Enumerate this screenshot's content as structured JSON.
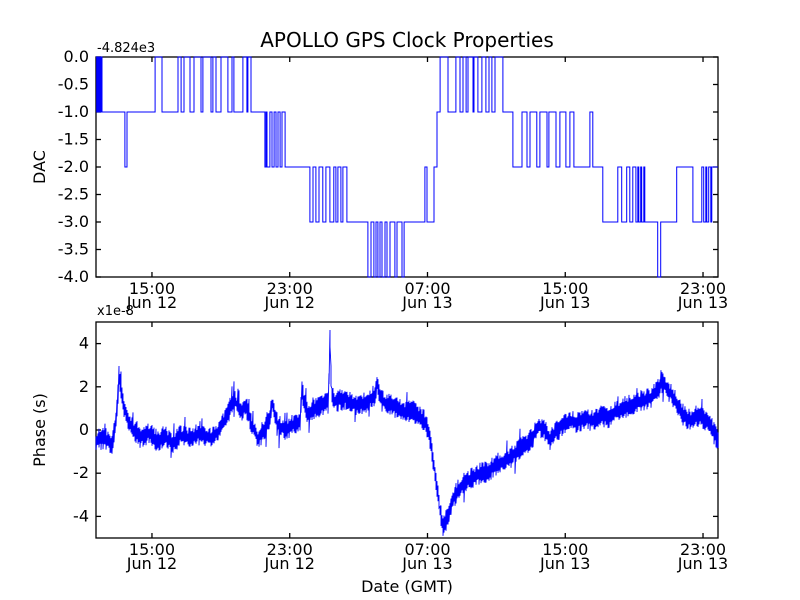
{
  "figure": {
    "background": "#ffffff",
    "frame_color": "#000000",
    "line_color": "#0000ff"
  },
  "chart_data": [
    {
      "type": "line",
      "drawstyle": "steps-post",
      "title": "APOLLO GPS Clock Properties",
      "ylabel": "DAC",
      "offset_text": "-4.824e3",
      "x_unit": "hours since Jun 12 00:00 GMT",
      "xlim": [
        11.75,
        47.87
      ],
      "ylim": [
        -4,
        0
      ],
      "grid": false,
      "xticks": [
        15,
        23,
        31,
        39,
        47
      ],
      "xtick_labels": [
        [
          "15:00",
          "Jun 12"
        ],
        [
          "23:00",
          "Jun 12"
        ],
        [
          "07:00",
          "Jun 13"
        ],
        [
          "15:00",
          "Jun 13"
        ],
        [
          "23:00",
          "Jun 13"
        ]
      ],
      "yticks": [
        0,
        -0.5,
        -1,
        -1.5,
        -2,
        -2.5,
        -3,
        -3.5,
        -4
      ],
      "ytick_labels": [
        "0.0",
        "-0.5",
        "-1.0",
        "-1.5",
        "-2.0",
        "-2.5",
        "-3.0",
        "-3.5",
        "-4.0"
      ],
      "series": [
        {
          "name": "dac-steps",
          "color": "#0000ff",
          "points": [
            [
              11.75,
              0
            ],
            [
              11.79,
              -1
            ],
            [
              11.82,
              0
            ],
            [
              11.85,
              -1
            ],
            [
              11.88,
              0
            ],
            [
              11.91,
              -1
            ],
            [
              11.94,
              0
            ],
            [
              11.97,
              -1
            ],
            [
              12.0,
              0
            ],
            [
              12.03,
              -1
            ],
            [
              12.06,
              0
            ],
            [
              12.1,
              -1
            ],
            [
              13.43,
              -2
            ],
            [
              13.55,
              -1
            ],
            [
              15.18,
              0
            ],
            [
              15.58,
              -1
            ],
            [
              16.51,
              0
            ],
            [
              16.69,
              -1
            ],
            [
              16.86,
              0
            ],
            [
              17.21,
              -1
            ],
            [
              17.44,
              0
            ],
            [
              17.85,
              -1
            ],
            [
              17.96,
              0
            ],
            [
              18.43,
              -1
            ],
            [
              18.54,
              0
            ],
            [
              18.72,
              -1
            ],
            [
              19.01,
              0
            ],
            [
              19.41,
              -1
            ],
            [
              19.65,
              0
            ],
            [
              19.76,
              -1
            ],
            [
              20.28,
              0
            ],
            [
              20.51,
              -1
            ],
            [
              20.57,
              0
            ],
            [
              20.75,
              -1
            ],
            [
              21.56,
              -2
            ],
            [
              21.62,
              -1
            ],
            [
              21.68,
              -2
            ],
            [
              21.85,
              -1
            ],
            [
              21.97,
              -2
            ],
            [
              22.09,
              -1
            ],
            [
              22.2,
              -2
            ],
            [
              22.32,
              -1
            ],
            [
              22.44,
              -2
            ],
            [
              22.55,
              -1
            ],
            [
              22.73,
              -2
            ],
            [
              24.17,
              -3
            ],
            [
              24.35,
              -2
            ],
            [
              24.52,
              -3
            ],
            [
              24.7,
              -2
            ],
            [
              24.92,
              -3
            ],
            [
              25.1,
              -2
            ],
            [
              25.33,
              -3
            ],
            [
              25.56,
              -2
            ],
            [
              25.68,
              -3
            ],
            [
              25.8,
              -2
            ],
            [
              25.97,
              -3
            ],
            [
              26.09,
              -2
            ],
            [
              26.32,
              -3
            ],
            [
              27.54,
              -4
            ],
            [
              27.72,
              -3
            ],
            [
              27.89,
              -4
            ],
            [
              28.01,
              -3
            ],
            [
              28.12,
              -4
            ],
            [
              28.24,
              -3
            ],
            [
              28.36,
              -4
            ],
            [
              28.53,
              -3
            ],
            [
              28.65,
              -4
            ],
            [
              28.82,
              -3
            ],
            [
              29.11,
              -4
            ],
            [
              29.23,
              -3
            ],
            [
              29.52,
              -4
            ],
            [
              29.64,
              -3
            ],
            [
              30.85,
              -2
            ],
            [
              30.97,
              -3
            ],
            [
              31.38,
              -2
            ],
            [
              31.55,
              -1
            ],
            [
              31.73,
              0
            ],
            [
              32.19,
              -1
            ],
            [
              32.65,
              0
            ],
            [
              32.89,
              -1
            ],
            [
              33.06,
              0
            ],
            [
              33.24,
              -1
            ],
            [
              33.35,
              0
            ],
            [
              33.64,
              -1
            ],
            [
              33.7,
              0
            ],
            [
              33.93,
              -1
            ],
            [
              34.16,
              0
            ],
            [
              34.39,
              -1
            ],
            [
              34.57,
              0
            ],
            [
              34.74,
              -1
            ],
            [
              34.92,
              0
            ],
            [
              35.38,
              -1
            ],
            [
              35.96,
              -2
            ],
            [
              36.49,
              -1
            ],
            [
              36.78,
              -2
            ],
            [
              36.95,
              -1
            ],
            [
              37.35,
              -2
            ],
            [
              37.53,
              -1
            ],
            [
              37.94,
              -2
            ],
            [
              38.05,
              -1
            ],
            [
              38.46,
              -2
            ],
            [
              38.69,
              -1
            ],
            [
              39.04,
              -2
            ],
            [
              39.27,
              -1
            ],
            [
              39.5,
              -2
            ],
            [
              40.43,
              -1
            ],
            [
              40.6,
              -2
            ],
            [
              41.18,
              -3
            ],
            [
              42.05,
              -2
            ],
            [
              42.28,
              -3
            ],
            [
              42.57,
              -2
            ],
            [
              42.75,
              -3
            ],
            [
              42.92,
              -2
            ],
            [
              43.1,
              -3
            ],
            [
              43.21,
              -2
            ],
            [
              43.27,
              -3
            ],
            [
              43.38,
              -2
            ],
            [
              43.44,
              -3
            ],
            [
              43.56,
              -2
            ],
            [
              43.62,
              -3
            ],
            [
              44.37,
              -4
            ],
            [
              44.54,
              -3
            ],
            [
              45.47,
              -2
            ],
            [
              46.41,
              -3
            ],
            [
              46.93,
              -2
            ],
            [
              47.04,
              -3
            ],
            [
              47.16,
              -2
            ],
            [
              47.22,
              -3
            ],
            [
              47.33,
              -2
            ],
            [
              47.45,
              -3
            ],
            [
              47.51,
              -2
            ]
          ]
        }
      ]
    },
    {
      "type": "line",
      "drawstyle": "noisy",
      "ylabel": "Phase (s)",
      "xlabel": "Date (GMT)",
      "offset_text": "x1e-8",
      "x_unit": "hours since Jun 12 00:00 GMT",
      "y_unit": "1e-8 s",
      "xlim": [
        11.75,
        47.87
      ],
      "ylim": [
        -5,
        5
      ],
      "grid": false,
      "xticks": [
        15,
        23,
        31,
        39,
        47
      ],
      "xtick_labels": [
        [
          "15:00",
          "Jun 12"
        ],
        [
          "23:00",
          "Jun 12"
        ],
        [
          "07:00",
          "Jun 13"
        ],
        [
          "15:00",
          "Jun 13"
        ],
        [
          "23:00",
          "Jun 13"
        ]
      ],
      "yticks": [
        4,
        2,
        0,
        -2,
        -4
      ],
      "ytick_labels": [
        "4",
        "2",
        "0",
        "-2",
        "-4"
      ],
      "series": [
        {
          "name": "phase-trace",
          "color": "#0000ff",
          "noise_seed": 1234,
          "noise_base": 0.42,
          "trend_points": [
            [
              11.75,
              -0.5
            ],
            [
              12.27,
              -0.35
            ],
            [
              12.68,
              -0.7
            ],
            [
              12.97,
              0.9
            ],
            [
              13.09,
              2.6
            ],
            [
              13.32,
              1.2
            ],
            [
              13.61,
              0.4
            ],
            [
              13.9,
              0.0
            ],
            [
              14.3,
              -0.35
            ],
            [
              14.89,
              -0.12
            ],
            [
              15.35,
              -0.55
            ],
            [
              15.76,
              -0.25
            ],
            [
              16.16,
              -0.7
            ],
            [
              16.63,
              -0.25
            ],
            [
              17.21,
              -0.4
            ],
            [
              17.79,
              -0.1
            ],
            [
              18.37,
              -0.4
            ],
            [
              18.95,
              0.0
            ],
            [
              19.53,
              1.0
            ],
            [
              19.82,
              1.4
            ],
            [
              20.11,
              0.8
            ],
            [
              20.46,
              1.1
            ],
            [
              20.81,
              0.2
            ],
            [
              21.16,
              -0.4
            ],
            [
              21.5,
              0.0
            ],
            [
              21.85,
              0.5
            ],
            [
              21.97,
              1.2
            ],
            [
              22.32,
              0.2
            ],
            [
              22.72,
              0.0
            ],
            [
              23.13,
              0.2
            ],
            [
              23.6,
              0.45
            ],
            [
              23.71,
              1.8
            ],
            [
              24.06,
              0.65
            ],
            [
              24.47,
              1.0
            ],
            [
              24.87,
              1.15
            ],
            [
              25.22,
              1.3
            ],
            [
              25.31,
              2.9
            ],
            [
              25.34,
              4.3
            ],
            [
              25.42,
              1.8
            ],
            [
              25.55,
              1.35
            ],
            [
              25.8,
              1.35
            ],
            [
              26.21,
              1.45
            ],
            [
              26.61,
              1.2
            ],
            [
              27.08,
              1.15
            ],
            [
              27.54,
              1.35
            ],
            [
              27.95,
              1.65
            ],
            [
              28.07,
              2.1
            ],
            [
              28.36,
              1.35
            ],
            [
              28.82,
              1.15
            ],
            [
              29.29,
              1.0
            ],
            [
              29.69,
              0.8
            ],
            [
              30.1,
              0.9
            ],
            [
              30.45,
              0.65
            ],
            [
              30.8,
              0.45
            ],
            [
              31.03,
              0.0
            ],
            [
              31.26,
              -0.95
            ],
            [
              31.49,
              -2.35
            ],
            [
              31.73,
              -3.75
            ],
            [
              31.9,
              -4.55
            ],
            [
              32.13,
              -4.1
            ],
            [
              32.42,
              -3.3
            ],
            [
              32.77,
              -2.8
            ],
            [
              33.18,
              -2.35
            ],
            [
              33.58,
              -2.25
            ],
            [
              34.05,
              -2.0
            ],
            [
              34.51,
              -1.9
            ],
            [
              34.92,
              -1.65
            ],
            [
              35.32,
              -1.5
            ],
            [
              35.79,
              -1.3
            ],
            [
              36.25,
              -0.95
            ],
            [
              36.72,
              -0.7
            ],
            [
              37.07,
              -0.4
            ],
            [
              37.41,
              0.2
            ],
            [
              37.82,
              0.0
            ],
            [
              38.11,
              -0.5
            ],
            [
              38.46,
              -0.1
            ],
            [
              38.81,
              0.2
            ],
            [
              39.27,
              0.45
            ],
            [
              39.74,
              0.35
            ],
            [
              40.14,
              0.55
            ],
            [
              40.55,
              0.45
            ],
            [
              41.01,
              0.65
            ],
            [
              41.48,
              0.55
            ],
            [
              41.88,
              0.8
            ],
            [
              42.29,
              1.0
            ],
            [
              42.75,
              1.15
            ],
            [
              43.22,
              1.3
            ],
            [
              43.62,
              1.4
            ],
            [
              44.03,
              1.5
            ],
            [
              44.38,
              1.85
            ],
            [
              44.61,
              2.4
            ],
            [
              44.78,
              2.05
            ],
            [
              45.19,
              1.6
            ],
            [
              45.54,
              1.15
            ],
            [
              45.88,
              0.65
            ],
            [
              46.23,
              0.45
            ],
            [
              46.58,
              0.65
            ],
            [
              46.93,
              0.55
            ],
            [
              47.28,
              0.45
            ],
            [
              47.63,
              -0.1
            ],
            [
              47.87,
              -0.5
            ]
          ]
        }
      ]
    }
  ]
}
